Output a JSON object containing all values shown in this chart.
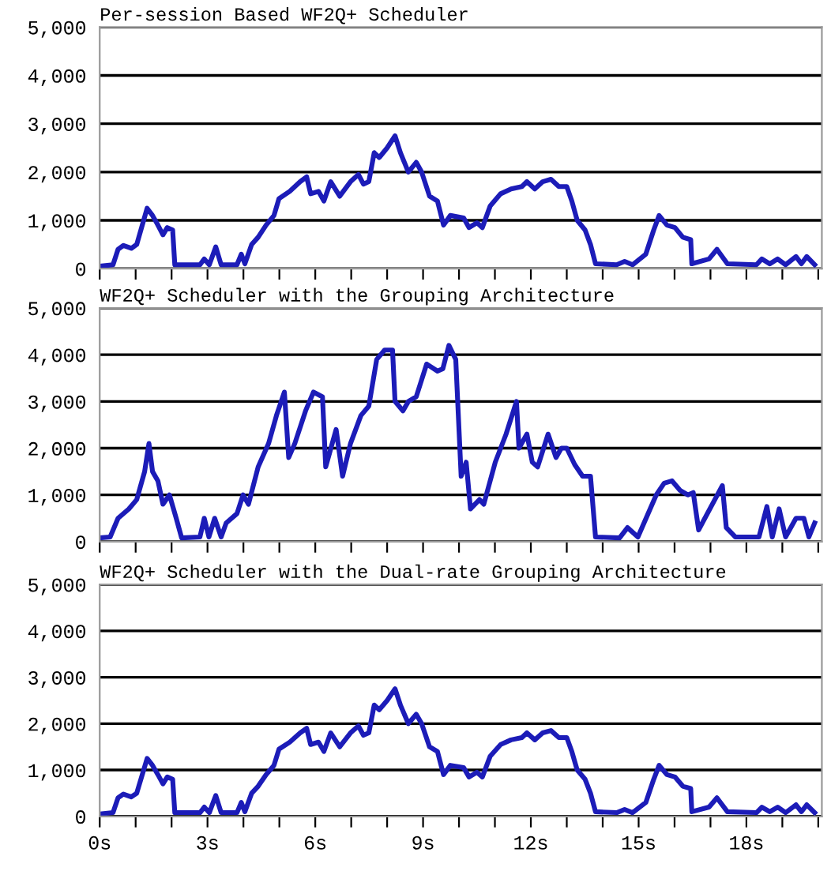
{
  "chart_data": [
    {
      "type": "line",
      "title": "Per-session Based WF2Q+ Scheduler",
      "xlim": [
        0,
        20.1
      ],
      "ylim": [
        0,
        5000
      ],
      "tick_labels": "y",
      "grid": "y",
      "xticks": [
        {
          "value": 0,
          "label": null
        },
        {
          "value": 1,
          "label": null
        },
        {
          "value": 2,
          "label": null
        },
        {
          "value": 3,
          "label": null
        },
        {
          "value": 4,
          "label": null
        },
        {
          "value": 5,
          "label": null
        },
        {
          "value": 6,
          "label": null
        },
        {
          "value": 7,
          "label": null
        },
        {
          "value": 8,
          "label": null
        },
        {
          "value": 9,
          "label": null
        },
        {
          "value": 10,
          "label": null
        },
        {
          "value": 11,
          "label": null
        },
        {
          "value": 12,
          "label": null
        },
        {
          "value": 13,
          "label": null
        },
        {
          "value": 14,
          "label": null
        },
        {
          "value": 15,
          "label": null
        },
        {
          "value": 16,
          "label": null
        },
        {
          "value": 17,
          "label": null
        },
        {
          "value": 18,
          "label": null
        },
        {
          "value": 19,
          "label": null
        },
        {
          "value": 20,
          "label": null
        }
      ],
      "yticks": [
        {
          "value": 0,
          "label": "0"
        },
        {
          "value": 1000,
          "label": "1,000"
        },
        {
          "value": 2000,
          "label": "2,000"
        },
        {
          "value": 3000,
          "label": "3,000"
        },
        {
          "value": 4000,
          "label": "4,000"
        },
        {
          "value": 5000,
          "label": "5,000"
        }
      ],
      "series": [
        {
          "color": "#1c1cb8",
          "x": [
            0,
            0.37,
            0.51,
            0.66,
            0.88,
            1.03,
            1.32,
            1.47,
            1.62,
            1.76,
            1.88,
            2.03,
            2.09,
            2.79,
            2.91,
            3.05,
            3.23,
            3.38,
            3.82,
            3.94,
            4.04,
            4.23,
            4.41,
            4.63,
            4.85,
            4.99,
            5.29,
            5.58,
            5.76,
            5.87,
            6.09,
            6.24,
            6.43,
            6.68,
            6.98,
            7.2,
            7.34,
            7.49,
            7.64,
            7.78,
            8.0,
            8.22,
            8.37,
            8.59,
            8.81,
            8.96,
            9.18,
            9.4,
            9.57,
            9.76,
            10.13,
            10.28,
            10.5,
            10.65,
            10.87,
            11.16,
            11.45,
            11.75,
            11.89,
            12.11,
            12.33,
            12.56,
            12.78,
            13.0,
            13.14,
            13.29,
            13.51,
            13.66,
            13.8,
            14.39,
            14.61,
            14.83,
            15.2,
            15.42,
            15.57,
            15.79,
            16.01,
            16.23,
            16.45,
            16.48,
            16.96,
            17.18,
            17.47,
            18.28,
            18.43,
            18.65,
            18.87,
            19.09,
            19.38,
            19.53,
            19.68,
            19.9
          ],
          "values": [
            50,
            80,
            400,
            480,
            420,
            500,
            1250,
            1100,
            900,
            700,
            850,
            800,
            80,
            80,
            200,
            80,
            450,
            80,
            80,
            300,
            100,
            500,
            650,
            900,
            1100,
            1450,
            1600,
            1800,
            1900,
            1550,
            1600,
            1400,
            1800,
            1500,
            1800,
            1950,
            1750,
            1800,
            2400,
            2300,
            2500,
            2750,
            2400,
            2000,
            2200,
            2000,
            1500,
            1400,
            900,
            1100,
            1050,
            850,
            950,
            850,
            1300,
            1550,
            1650,
            1700,
            1800,
            1650,
            1800,
            1850,
            1700,
            1700,
            1400,
            1000,
            800,
            500,
            100,
            80,
            150,
            80,
            300,
            800,
            1100,
            900,
            850,
            650,
            600,
            100,
            200,
            400,
            100,
            80,
            200,
            100,
            200,
            80,
            250,
            100,
            250,
            80
          ]
        }
      ]
    },
    {
      "type": "line",
      "title": "WF2Q+ Scheduler with the Grouping Architecture",
      "xlim": [
        0,
        20.1
      ],
      "ylim": [
        0,
        5000
      ],
      "tick_labels": "y",
      "grid": "y",
      "xticks": [
        {
          "value": 0,
          "label": null
        },
        {
          "value": 1,
          "label": null
        },
        {
          "value": 2,
          "label": null
        },
        {
          "value": 3,
          "label": null
        },
        {
          "value": 4,
          "label": null
        },
        {
          "value": 5,
          "label": null
        },
        {
          "value": 6,
          "label": null
        },
        {
          "value": 7,
          "label": null
        },
        {
          "value": 8,
          "label": null
        },
        {
          "value": 9,
          "label": null
        },
        {
          "value": 10,
          "label": null
        },
        {
          "value": 11,
          "label": null
        },
        {
          "value": 12,
          "label": null
        },
        {
          "value": 13,
          "label": null
        },
        {
          "value": 14,
          "label": null
        },
        {
          "value": 15,
          "label": null
        },
        {
          "value": 16,
          "label": null
        },
        {
          "value": 17,
          "label": null
        },
        {
          "value": 18,
          "label": null
        },
        {
          "value": 19,
          "label": null
        },
        {
          "value": 20,
          "label": null
        }
      ],
      "yticks": [
        {
          "value": 0,
          "label": "0"
        },
        {
          "value": 1000,
          "label": "1,000"
        },
        {
          "value": 2000,
          "label": "2,000"
        },
        {
          "value": 3000,
          "label": "3,000"
        },
        {
          "value": 4000,
          "label": "4,000"
        },
        {
          "value": 5000,
          "label": "5,000"
        }
      ],
      "series": [
        {
          "color": "#1c1cb8",
          "x": [
            0,
            0.29,
            0.51,
            0.81,
            1.03,
            1.25,
            1.37,
            1.47,
            1.62,
            1.76,
            1.94,
            2.13,
            2.28,
            2.79,
            2.91,
            3.04,
            3.2,
            3.38,
            3.52,
            3.82,
            3.99,
            4.14,
            4.41,
            4.7,
            4.92,
            5.14,
            5.26,
            5.43,
            5.73,
            5.95,
            6.2,
            6.29,
            6.58,
            6.76,
            6.98,
            7.27,
            7.49,
            7.71,
            7.93,
            8.15,
            8.22,
            8.44,
            8.59,
            8.81,
            9.1,
            9.4,
            9.55,
            9.72,
            9.91,
            10.06,
            10.2,
            10.32,
            10.57,
            10.69,
            11.01,
            11.31,
            11.6,
            11.67,
            11.89,
            12.04,
            12.19,
            12.48,
            12.7,
            12.85,
            13.0,
            13.22,
            13.44,
            13.66,
            13.8,
            14.47,
            14.69,
            14.98,
            15.49,
            15.71,
            15.93,
            16.15,
            16.37,
            16.52,
            16.67,
            17.33,
            17.44,
            17.69,
            18.35,
            18.57,
            18.72,
            18.91,
            19.09,
            19.38,
            19.6,
            19.74,
            19.9
          ],
          "values": [
            80,
            100,
            500,
            700,
            900,
            1500,
            2100,
            1500,
            1300,
            800,
            1000,
            500,
            80,
            100,
            500,
            100,
            500,
            100,
            400,
            600,
            1000,
            800,
            1600,
            2100,
            2700,
            3200,
            1800,
            2100,
            2800,
            3200,
            3100,
            1600,
            2400,
            1400,
            2100,
            2700,
            2900,
            3900,
            4100,
            4100,
            3000,
            2800,
            3000,
            3100,
            3800,
            3650,
            3700,
            4200,
            3900,
            1400,
            1700,
            700,
            900,
            800,
            1700,
            2300,
            3000,
            2000,
            2300,
            1700,
            1600,
            2300,
            1800,
            2000,
            2000,
            1650,
            1400,
            1400,
            100,
            80,
            300,
            100,
            1000,
            1250,
            1300,
            1100,
            1000,
            1050,
            250,
            1200,
            300,
            100,
            100,
            750,
            100,
            700,
            100,
            500,
            500,
            100,
            400
          ]
        }
      ]
    },
    {
      "type": "line",
      "title": "WF2Q+ Scheduler with the Dual-rate Grouping Architecture",
      "xlim": [
        0,
        20.1
      ],
      "ylim": [
        0,
        5000
      ],
      "grid": "y",
      "xticks": [
        {
          "value": 0,
          "label": "0s"
        },
        {
          "value": 1,
          "label": null
        },
        {
          "value": 2,
          "label": null
        },
        {
          "value": 3,
          "label": "3s"
        },
        {
          "value": 4,
          "label": null
        },
        {
          "value": 5,
          "label": null
        },
        {
          "value": 6,
          "label": "6s"
        },
        {
          "value": 7,
          "label": null
        },
        {
          "value": 8,
          "label": null
        },
        {
          "value": 9,
          "label": "9s"
        },
        {
          "value": 10,
          "label": null
        },
        {
          "value": 11,
          "label": null
        },
        {
          "value": 12,
          "label": "12s"
        },
        {
          "value": 13,
          "label": null
        },
        {
          "value": 14,
          "label": null
        },
        {
          "value": 15,
          "label": "15s"
        },
        {
          "value": 16,
          "label": null
        },
        {
          "value": 17,
          "label": null
        },
        {
          "value": 18,
          "label": "18s"
        },
        {
          "value": 19,
          "label": null
        },
        {
          "value": 20,
          "label": null
        }
      ],
      "yticks": [
        {
          "value": 0,
          "label": "0"
        },
        {
          "value": 1000,
          "label": "1,000"
        },
        {
          "value": 2000,
          "label": "2,000"
        },
        {
          "value": 3000,
          "label": "3,000"
        },
        {
          "value": 4000,
          "label": "4,000"
        },
        {
          "value": 5000,
          "label": "5,000"
        }
      ],
      "series": [
        {
          "color": "#1c1cb8",
          "x": [
            0,
            0.37,
            0.51,
            0.66,
            0.88,
            1.03,
            1.32,
            1.47,
            1.62,
            1.76,
            1.88,
            2.03,
            2.09,
            2.79,
            2.91,
            3.05,
            3.23,
            3.38,
            3.82,
            3.94,
            4.04,
            4.23,
            4.41,
            4.63,
            4.85,
            4.99,
            5.29,
            5.58,
            5.76,
            5.87,
            6.09,
            6.24,
            6.43,
            6.68,
            6.98,
            7.2,
            7.34,
            7.49,
            7.64,
            7.78,
            8.0,
            8.22,
            8.37,
            8.59,
            8.81,
            8.96,
            9.18,
            9.4,
            9.57,
            9.76,
            10.13,
            10.28,
            10.5,
            10.65,
            10.87,
            11.16,
            11.45,
            11.75,
            11.89,
            12.11,
            12.33,
            12.56,
            12.78,
            13.0,
            13.14,
            13.29,
            13.51,
            13.66,
            13.8,
            14.39,
            14.61,
            14.83,
            15.2,
            15.42,
            15.57,
            15.79,
            16.01,
            16.23,
            16.45,
            16.48,
            16.96,
            17.18,
            17.47,
            18.28,
            18.43,
            18.65,
            18.87,
            19.09,
            19.38,
            19.53,
            19.68,
            19.9
          ],
          "values": [
            50,
            80,
            400,
            480,
            420,
            500,
            1250,
            1100,
            900,
            700,
            850,
            800,
            80,
            80,
            200,
            80,
            450,
            80,
            80,
            300,
            100,
            500,
            650,
            900,
            1100,
            1450,
            1600,
            1800,
            1900,
            1550,
            1600,
            1400,
            1800,
            1500,
            1800,
            1950,
            1750,
            1800,
            2400,
            2300,
            2500,
            2750,
            2400,
            2000,
            2200,
            2000,
            1500,
            1400,
            900,
            1100,
            1050,
            850,
            950,
            850,
            1300,
            1550,
            1650,
            1700,
            1800,
            1650,
            1800,
            1850,
            1700,
            1700,
            1400,
            1000,
            800,
            500,
            100,
            80,
            150,
            80,
            300,
            800,
            1100,
            900,
            850,
            650,
            600,
            100,
            200,
            400,
            100,
            80,
            200,
            100,
            200,
            80,
            250,
            100,
            250,
            80
          ]
        }
      ]
    }
  ]
}
